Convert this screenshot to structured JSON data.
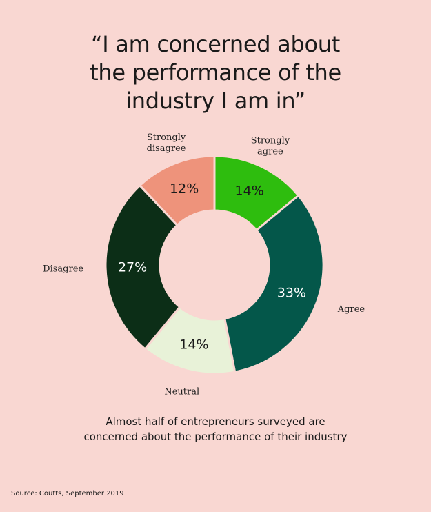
{
  "title_lines": [
    "“I am concerned about",
    "the performance of the",
    "industry I am in”"
  ],
  "caption_lines": [
    "Almost half of entrepreneurs surveyed are",
    "concerned about the performance of their industry"
  ],
  "source": "Source: Coutts, September 2019",
  "chart_data": {
    "type": "pie",
    "variant": "donut",
    "slices": [
      {
        "label_lines": [
          "Strongly",
          "agree"
        ],
        "value": 14,
        "display": "14%",
        "color": "#2ebd0e",
        "text_color": "#1a1a1a"
      },
      {
        "label_lines": [
          "Agree"
        ],
        "value": 33,
        "display": "33%",
        "color": "#04574a",
        "text_color": "#ffffff"
      },
      {
        "label_lines": [
          "Neutral"
        ],
        "value": 14,
        "display": "14%",
        "color": "#e8f2d8",
        "text_color": "#1a1a1a"
      },
      {
        "label_lines": [
          "Disagree"
        ],
        "value": 27,
        "display": "27%",
        "color": "#0c2e17",
        "text_color": "#ffffff"
      },
      {
        "label_lines": [
          "Strongly",
          "disagree"
        ],
        "value": 12,
        "display": "12%",
        "color": "#ee937b",
        "text_color": "#1a1a1a"
      }
    ]
  }
}
